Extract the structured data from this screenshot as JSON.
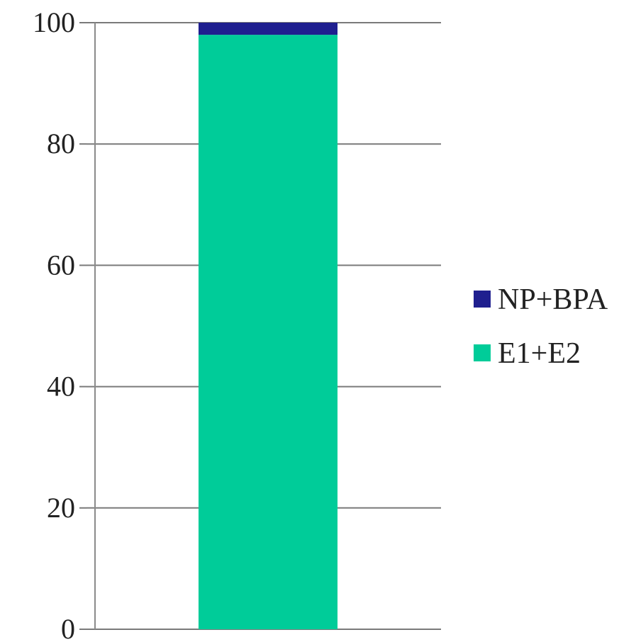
{
  "chart_data": {
    "type": "bar",
    "stacked": true,
    "categories": [
      ""
    ],
    "series": [
      {
        "name": "E1+E2",
        "values": [
          98
        ],
        "color": "#00cc99"
      },
      {
        "name": "NP+BPA",
        "values": [
          2
        ],
        "color": "#1f1f8f"
      }
    ],
    "ylim": [
      0,
      100
    ],
    "yticks": [
      0,
      20,
      40,
      60,
      80,
      100
    ],
    "ytick_labels": [
      "0",
      "20",
      "40",
      "60",
      "80",
      "100"
    ],
    "grid": true,
    "legend": {
      "placement": "right",
      "entries": [
        {
          "label": "NP+BPA",
          "color": "#1f1f8f"
        },
        {
          "label": "E1+E2",
          "color": "#00cc99"
        }
      ]
    },
    "title": "",
    "xlabel": "",
    "ylabel": ""
  }
}
